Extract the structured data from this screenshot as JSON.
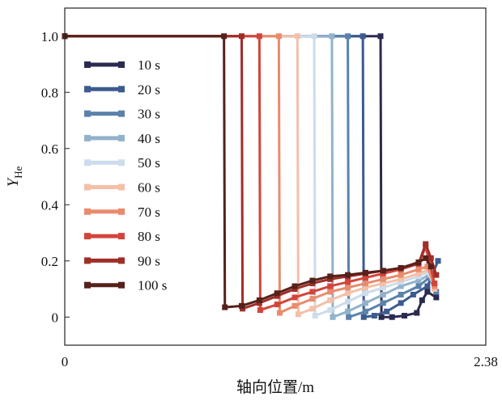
{
  "chart_data": {
    "type": "line",
    "xlabel": "轴向位置/m",
    "ylabel": "Y",
    "ylabel_sub": "He",
    "xlim": [
      0,
      2.38
    ],
    "ylim": [
      -0.1,
      1.1
    ],
    "x_ticks": [
      {
        "value": 0,
        "label": "0"
      },
      {
        "value": 2.38,
        "label": "2.38"
      }
    ],
    "y_ticks": [
      {
        "value": 0,
        "label": "0"
      },
      {
        "value": 0.2,
        "label": "0.2"
      },
      {
        "value": 0.4,
        "label": "0.4"
      },
      {
        "value": 0.6,
        "label": "0.6"
      },
      {
        "value": 0.8,
        "label": "0.8"
      },
      {
        "value": 1.0,
        "label": "1.0"
      }
    ],
    "legend_position": "left",
    "series": [
      {
        "name": "10 s",
        "color": "#2b2b50",
        "points": [
          [
            0,
            1.0
          ],
          [
            1.785,
            1.0
          ],
          [
            1.79,
            0.0
          ],
          [
            1.85,
            0.0
          ],
          [
            1.92,
            0.005
          ],
          [
            1.99,
            0.015
          ],
          [
            2.02,
            0.06
          ],
          [
            2.05,
            0.09
          ],
          [
            2.1,
            0.07
          ]
        ]
      },
      {
        "name": "20 s",
        "color": "#3c5b8f",
        "points": [
          [
            0,
            1.0
          ],
          [
            1.685,
            1.0
          ],
          [
            1.69,
            0.0
          ],
          [
            1.75,
            0.005
          ],
          [
            1.82,
            0.02
          ],
          [
            1.9,
            0.05
          ],
          [
            1.97,
            0.08
          ],
          [
            2.05,
            0.11
          ],
          [
            2.11,
            0.2
          ]
        ]
      },
      {
        "name": "30 s",
        "color": "#5a82aa",
        "points": [
          [
            0,
            1.0
          ],
          [
            1.6,
            1.0
          ],
          [
            1.605,
            0.0
          ],
          [
            1.7,
            0.02
          ],
          [
            1.8,
            0.05
          ],
          [
            1.9,
            0.08
          ],
          [
            2.0,
            0.11
          ],
          [
            2.06,
            0.14
          ],
          [
            2.1,
            0.09
          ]
        ]
      },
      {
        "name": "40 s",
        "color": "#91b2cc",
        "points": [
          [
            0,
            1.0
          ],
          [
            1.51,
            1.0
          ],
          [
            1.515,
            0.0
          ],
          [
            1.6,
            0.02
          ],
          [
            1.7,
            0.05
          ],
          [
            1.8,
            0.08
          ],
          [
            1.9,
            0.11
          ],
          [
            2.0,
            0.13
          ],
          [
            2.06,
            0.15
          ],
          [
            2.09,
            0.12
          ]
        ]
      },
      {
        "name": "50 s",
        "color": "#cddcec",
        "points": [
          [
            0,
            1.0
          ],
          [
            1.41,
            1.0
          ],
          [
            1.415,
            0.005
          ],
          [
            1.5,
            0.025
          ],
          [
            1.6,
            0.055
          ],
          [
            1.7,
            0.085
          ],
          [
            1.8,
            0.105
          ],
          [
            1.9,
            0.125
          ],
          [
            2.0,
            0.145
          ],
          [
            2.05,
            0.16
          ],
          [
            2.09,
            0.11
          ]
        ]
      },
      {
        "name": "60 s",
        "color": "#f4c0a7",
        "points": [
          [
            0,
            1.0
          ],
          [
            1.315,
            1.0
          ],
          [
            1.32,
            0.01
          ],
          [
            1.4,
            0.03
          ],
          [
            1.5,
            0.06
          ],
          [
            1.6,
            0.085
          ],
          [
            1.7,
            0.105
          ],
          [
            1.8,
            0.12
          ],
          [
            1.9,
            0.135
          ],
          [
            2.0,
            0.155
          ],
          [
            2.06,
            0.17
          ],
          [
            2.09,
            0.1
          ]
        ]
      },
      {
        "name": "70 s",
        "color": "#e98b6d",
        "points": [
          [
            0,
            1.0
          ],
          [
            1.21,
            1.0
          ],
          [
            1.215,
            0.015
          ],
          [
            1.3,
            0.04
          ],
          [
            1.4,
            0.065
          ],
          [
            1.5,
            0.09
          ],
          [
            1.6,
            0.105
          ],
          [
            1.7,
            0.12
          ],
          [
            1.8,
            0.135
          ],
          [
            1.9,
            0.15
          ],
          [
            2.0,
            0.17
          ],
          [
            2.05,
            0.18
          ],
          [
            2.09,
            0.11
          ]
        ]
      },
      {
        "name": "80 s",
        "color": "#d2453b",
        "points": [
          [
            0,
            1.0
          ],
          [
            1.1,
            1.0
          ],
          [
            1.105,
            0.025
          ],
          [
            1.2,
            0.045
          ],
          [
            1.3,
            0.07
          ],
          [
            1.4,
            0.09
          ],
          [
            1.5,
            0.11
          ],
          [
            1.6,
            0.125
          ],
          [
            1.7,
            0.14
          ],
          [
            1.8,
            0.155
          ],
          [
            1.9,
            0.17
          ],
          [
            2.0,
            0.19
          ],
          [
            2.04,
            0.25
          ],
          [
            2.06,
            0.2
          ],
          [
            2.09,
            0.12
          ]
        ]
      },
      {
        "name": "90 s",
        "color": "#a02e28",
        "points": [
          [
            0,
            1.0
          ],
          [
            1.0,
            1.0
          ],
          [
            1.005,
            0.03
          ],
          [
            1.1,
            0.05
          ],
          [
            1.2,
            0.075
          ],
          [
            1.3,
            0.1
          ],
          [
            1.4,
            0.12
          ],
          [
            1.5,
            0.135
          ],
          [
            1.6,
            0.145
          ],
          [
            1.7,
            0.155
          ],
          [
            1.8,
            0.165
          ],
          [
            1.9,
            0.175
          ],
          [
            2.0,
            0.19
          ],
          [
            2.04,
            0.26
          ],
          [
            2.07,
            0.21
          ],
          [
            2.1,
            0.15
          ]
        ]
      },
      {
        "name": "100 s",
        "color": "#55211a",
        "points": [
          [
            0,
            1.0
          ],
          [
            0.9,
            1.0
          ],
          [
            0.905,
            0.035
          ],
          [
            1.0,
            0.04
          ],
          [
            1.1,
            0.06
          ],
          [
            1.2,
            0.085
          ],
          [
            1.3,
            0.11
          ],
          [
            1.4,
            0.13
          ],
          [
            1.5,
            0.145
          ],
          [
            1.6,
            0.15
          ],
          [
            1.7,
            0.158
          ],
          [
            1.8,
            0.165
          ],
          [
            1.9,
            0.175
          ],
          [
            2.0,
            0.195
          ],
          [
            2.04,
            0.21
          ],
          [
            2.07,
            0.18
          ]
        ]
      }
    ]
  }
}
